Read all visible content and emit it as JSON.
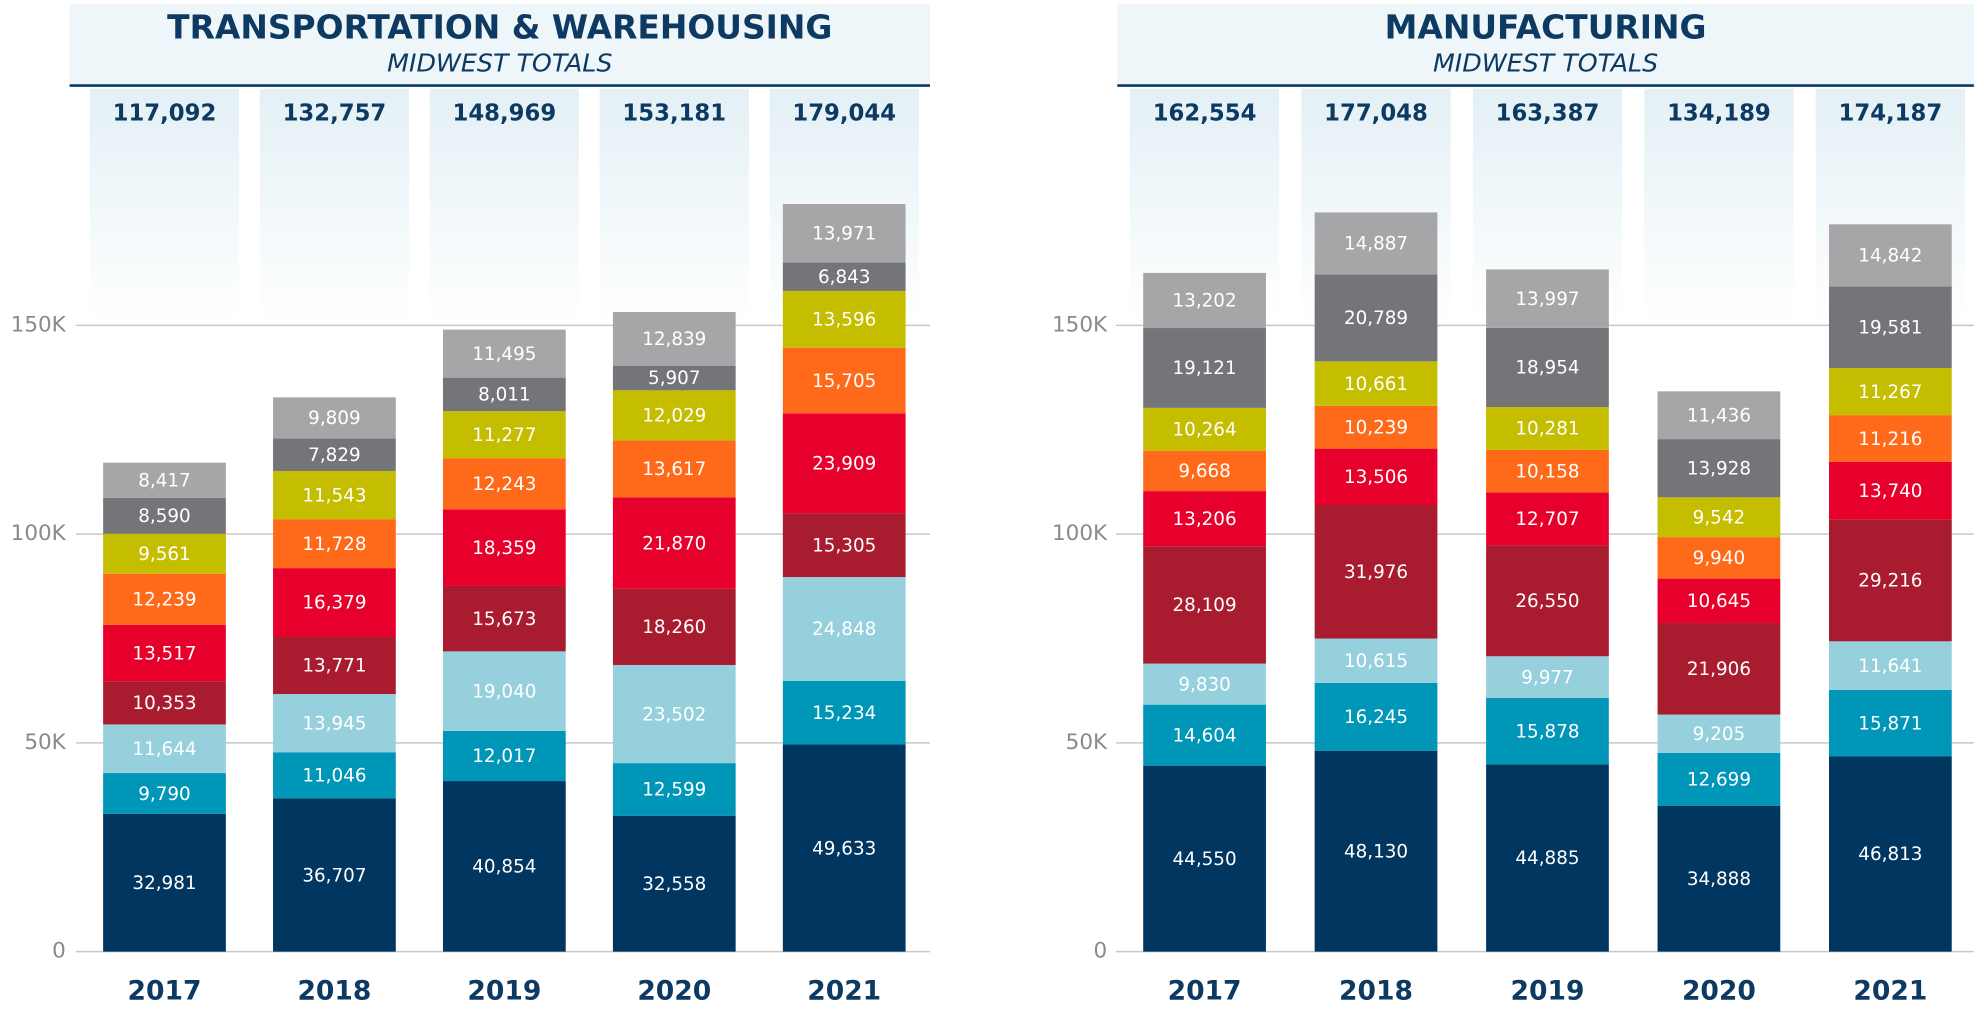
{
  "chart_data": [
    {
      "type": "bar",
      "stacked": true,
      "title": "TRANSPORTATION & WAREHOUSING",
      "subtitle": "MIDWEST TOTALS",
      "categories": [
        "2017",
        "2018",
        "2019",
        "2020",
        "2021"
      ],
      "totals": [
        117092,
        132757,
        148969,
        153181,
        179044
      ],
      "total_labels": [
        "117,092",
        "132,757",
        "148,969",
        "153,181",
        "179,044"
      ],
      "ylim": [
        0,
        225000
      ],
      "yticks": [
        0,
        {
          "value": 50000,
          "label": "50K"
        },
        {
          "value": 100000,
          "label": "100K"
        },
        {
          "value": 150000,
          "label": "150K"
        }
      ],
      "grid": true,
      "series": [
        {
          "color": "#003660",
          "values": [
            32981,
            36707,
            40854,
            32558,
            49633
          ],
          "value_labels": [
            "32,981",
            "36,707",
            "40,854",
            "32,558",
            "49,633"
          ]
        },
        {
          "color": "#0096b7",
          "values": [
            9790,
            11046,
            12017,
            12599,
            15234
          ],
          "value_labels": [
            "9,790",
            "11,046",
            "12,017",
            "12,599",
            "15,234"
          ]
        },
        {
          "color": "#95d0dc",
          "values": [
            11644,
            13945,
            19040,
            23502,
            24848
          ],
          "value_labels": [
            "11,644",
            "13,945",
            "19,040",
            "23,502",
            "24,848"
          ]
        },
        {
          "color": "#a91b2e",
          "values": [
            10353,
            13771,
            15673,
            18260,
            15305
          ],
          "value_labels": [
            "10,353",
            "13,771",
            "15,673",
            "18,260",
            "15,305"
          ]
        },
        {
          "color": "#e8002d",
          "values": [
            13517,
            16379,
            18359,
            21870,
            23909
          ],
          "value_labels": [
            "13,517",
            "16,379",
            "18,359",
            "21,870",
            "23,909"
          ]
        },
        {
          "color": "#ff6a1a",
          "values": [
            12239,
            11728,
            12243,
            13617,
            15705
          ],
          "value_labels": [
            "12,239",
            "11,728",
            "12,243",
            "13,617",
            "15,705"
          ]
        },
        {
          "color": "#c4bd00",
          "values": [
            9561,
            11543,
            11277,
            12029,
            13596
          ],
          "value_labels": [
            "9,561",
            "11,543",
            "11,277",
            "12,029",
            "13,596"
          ]
        },
        {
          "color": "#747578",
          "values": [
            8590,
            7829,
            8011,
            5907,
            6843
          ],
          "value_labels": [
            "8,590",
            "7,829",
            "8,011",
            "5,907",
            "6,843"
          ]
        },
        {
          "color": "#a6a6a8",
          "values": [
            8417,
            9809,
            11495,
            12839,
            13971
          ],
          "value_labels": [
            "8,417",
            "9,809",
            "11,495",
            "12,839",
            "13,971"
          ]
        }
      ]
    },
    {
      "type": "bar",
      "stacked": true,
      "title": "MANUFACTURING",
      "subtitle": "MIDWEST TOTALS",
      "categories": [
        "2017",
        "2018",
        "2019",
        "2020",
        "2021"
      ],
      "totals": [
        162554,
        177048,
        163387,
        134189,
        174187
      ],
      "total_labels": [
        "162,554",
        "177,048",
        "163,387",
        "134,189",
        "174,187"
      ],
      "ylim": [
        0,
        225000
      ],
      "yticks": [
        0,
        {
          "value": 50000,
          "label": "50K"
        },
        {
          "value": 100000,
          "label": "100K"
        },
        {
          "value": 150000,
          "label": "150K"
        }
      ],
      "grid": true,
      "series": [
        {
          "color": "#003660",
          "values": [
            44550,
            48130,
            44885,
            34888,
            46813
          ],
          "value_labels": [
            "44,550",
            "48,130",
            "44,885",
            "34,888",
            "46,813"
          ]
        },
        {
          "color": "#0096b7",
          "values": [
            14604,
            16245,
            15878,
            12699,
            15871
          ],
          "value_labels": [
            "14,604",
            "16,245",
            "15,878",
            "12,699",
            "15,871"
          ]
        },
        {
          "color": "#95d0dc",
          "values": [
            9830,
            10615,
            9977,
            9205,
            11641
          ],
          "value_labels": [
            "9,830",
            "10,615",
            "9,977",
            "9,205",
            "11,641"
          ]
        },
        {
          "color": "#a91b2e",
          "values": [
            28109,
            31976,
            26550,
            21906,
            29216
          ],
          "value_labels": [
            "28,109",
            "31,976",
            "26,550",
            "21,906",
            "29,216"
          ]
        },
        {
          "color": "#e8002d",
          "values": [
            13206,
            13506,
            12707,
            10645,
            13740
          ],
          "value_labels": [
            "13,206",
            "13,506",
            "12,707",
            "10,645",
            "13,740"
          ]
        },
        {
          "color": "#ff6a1a",
          "values": [
            9668,
            10239,
            10158,
            9940,
            11216
          ],
          "value_labels": [
            "9,668",
            "10,239",
            "10,158",
            "9,940",
            "11,216"
          ]
        },
        {
          "color": "#c4bd00",
          "values": [
            10264,
            10661,
            10281,
            9542,
            11267
          ],
          "value_labels": [
            "10,264",
            "10,661",
            "10,281",
            "9,542",
            "11,267"
          ]
        },
        {
          "color": "#747578",
          "values": [
            19121,
            20789,
            18954,
            13928,
            19581
          ],
          "value_labels": [
            "19,121",
            "20,789",
            "18,954",
            "13,928",
            "19,581"
          ]
        },
        {
          "color": "#a6a6a8",
          "values": [
            13202,
            14887,
            13997,
            11436,
            14842
          ],
          "value_labels": [
            "13,202",
            "14,887",
            "13,997",
            "11,436",
            "14,842"
          ]
        }
      ]
    }
  ]
}
